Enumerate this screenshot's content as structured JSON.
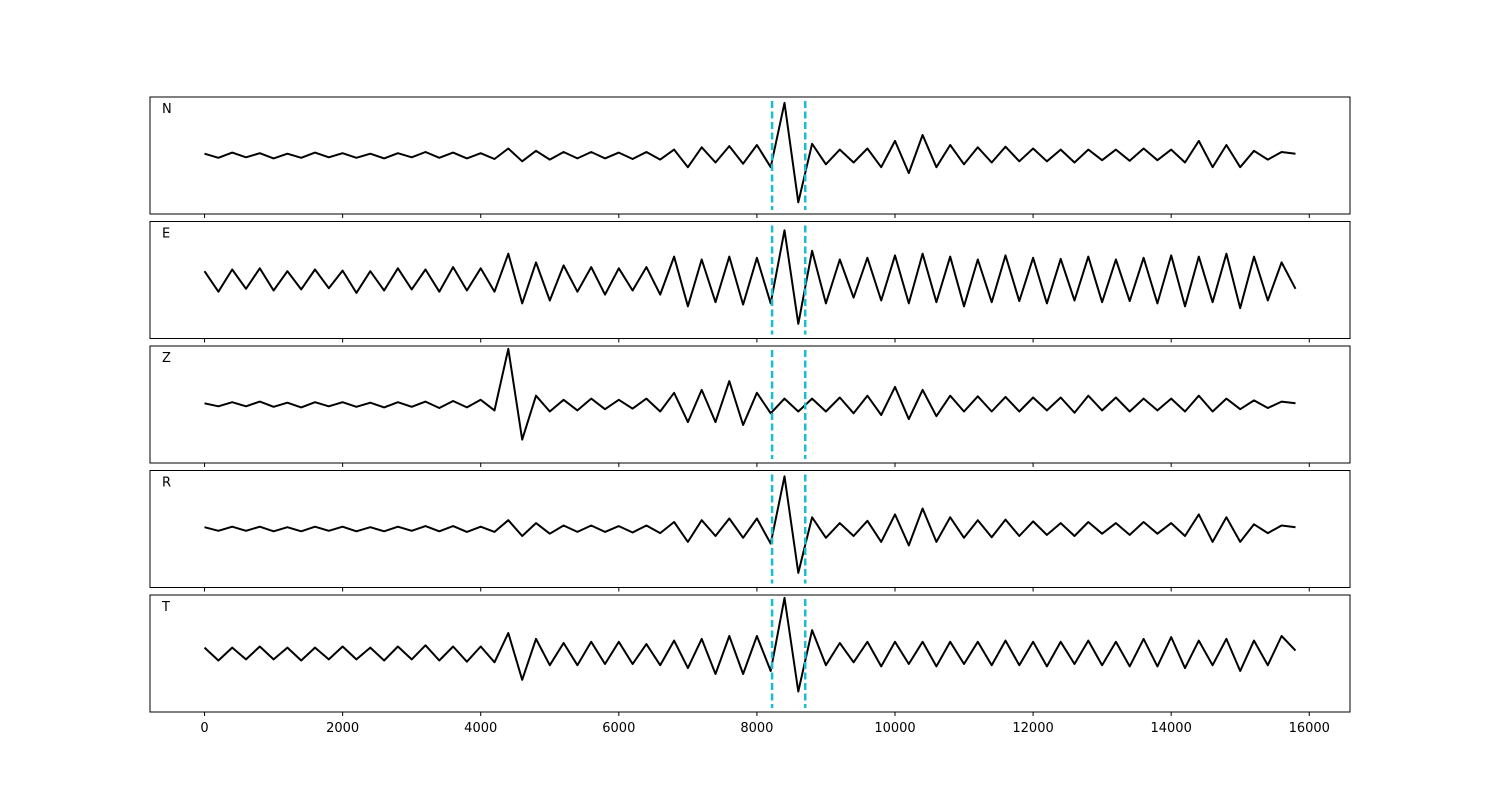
{
  "chart_data": [
    {
      "type": "line",
      "title": "N",
      "x": [
        0,
        200,
        400,
        600,
        800,
        1000,
        1200,
        1400,
        1600,
        1800,
        2000,
        2200,
        2400,
        2600,
        2800,
        3000,
        3200,
        3400,
        3600,
        3800,
        4000,
        4200,
        4400,
        4600,
        4800,
        5000,
        5200,
        5400,
        5600,
        5800,
        6000,
        6200,
        6400,
        6600,
        6800,
        7000,
        7200,
        7400,
        7600,
        7800,
        8000,
        8200,
        8400,
        8600,
        8800,
        9000,
        9200,
        9400,
        9600,
        9800,
        10000,
        10200,
        10400,
        10600,
        10800,
        11000,
        11200,
        11400,
        11600,
        11800,
        12000,
        12200,
        12400,
        12600,
        12800,
        13000,
        13200,
        13400,
        13600,
        13800,
        14000,
        14200,
        14400,
        14600,
        14800,
        15000,
        15200,
        15400,
        15600,
        15800
      ],
      "values": [
        0.03,
        -0.04,
        0.05,
        -0.03,
        0.04,
        -0.05,
        0.03,
        -0.04,
        0.05,
        -0.03,
        0.04,
        -0.04,
        0.03,
        -0.05,
        0.04,
        -0.03,
        0.06,
        -0.04,
        0.05,
        -0.05,
        0.04,
        -0.06,
        0.12,
        -0.1,
        0.08,
        -0.07,
        0.06,
        -0.05,
        0.06,
        -0.05,
        0.05,
        -0.06,
        0.06,
        -0.07,
        0.1,
        -0.2,
        0.14,
        -0.12,
        0.16,
        -0.14,
        0.18,
        -0.2,
        0.9,
        -0.8,
        0.2,
        -0.15,
        0.1,
        -0.12,
        0.12,
        -0.2,
        0.25,
        -0.3,
        0.35,
        -0.2,
        0.18,
        -0.15,
        0.14,
        -0.12,
        0.15,
        -0.1,
        0.12,
        -0.1,
        0.1,
        -0.12,
        0.1,
        -0.08,
        0.1,
        -0.09,
        0.12,
        -0.08,
        0.1,
        -0.12,
        0.25,
        -0.2,
        0.18,
        -0.2,
        0.08,
        -0.07,
        0.06,
        0.03
      ],
      "color": "#000000",
      "xlim": [
        -790,
        16590
      ],
      "ylim": [
        -1,
        1
      ],
      "xticks": [
        0,
        2000,
        4000,
        6000,
        8000,
        10000,
        12000,
        14000,
        16000
      ],
      "show_xtick_labels": false,
      "vlines": [
        8220,
        8700
      ],
      "vline_color": "#17becf"
    },
    {
      "type": "line",
      "title": "E",
      "x": [
        0,
        200,
        400,
        600,
        800,
        1000,
        1200,
        1400,
        1600,
        1800,
        2000,
        2200,
        2400,
        2600,
        2800,
        3000,
        3200,
        3400,
        3600,
        3800,
        4000,
        4200,
        4400,
        4600,
        4800,
        5000,
        5200,
        5400,
        5600,
        5800,
        6000,
        6200,
        6400,
        6600,
        6800,
        7000,
        7200,
        7400,
        7600,
        7800,
        8000,
        8200,
        8400,
        8600,
        8800,
        9000,
        9200,
        9400,
        9600,
        9800,
        10000,
        10200,
        10400,
        10600,
        10800,
        11000,
        11200,
        11400,
        11600,
        11800,
        12000,
        12200,
        12400,
        12600,
        12800,
        13000,
        13200,
        13400,
        13600,
        13800,
        14000,
        14200,
        14400,
        14600,
        14800,
        15000,
        15200,
        15400,
        15600,
        15800
      ],
      "values": [
        0.15,
        -0.2,
        0.18,
        -0.15,
        0.2,
        -0.18,
        0.15,
        -0.16,
        0.18,
        -0.14,
        0.16,
        -0.22,
        0.15,
        -0.18,
        0.2,
        -0.16,
        0.18,
        -0.2,
        0.22,
        -0.18,
        0.2,
        -0.2,
        0.45,
        -0.4,
        0.3,
        -0.35,
        0.25,
        -0.2,
        0.22,
        -0.25,
        0.2,
        -0.18,
        0.22,
        -0.25,
        0.4,
        -0.45,
        0.35,
        -0.38,
        0.4,
        -0.42,
        0.38,
        -0.4,
        0.85,
        -0.75,
        0.5,
        -0.4,
        0.35,
        -0.3,
        0.38,
        -0.35,
        0.42,
        -0.4,
        0.45,
        -0.38,
        0.4,
        -0.45,
        0.35,
        -0.38,
        0.42,
        -0.36,
        0.38,
        -0.4,
        0.36,
        -0.35,
        0.4,
        -0.38,
        0.35,
        -0.36,
        0.38,
        -0.4,
        0.42,
        -0.45,
        0.4,
        -0.38,
        0.45,
        -0.48,
        0.4,
        -0.35,
        0.3,
        -0.15
      ],
      "color": "#000000",
      "xlim": [
        -790,
        16590
      ],
      "ylim": [
        -1,
        1
      ],
      "xticks": [
        0,
        2000,
        4000,
        6000,
        8000,
        10000,
        12000,
        14000,
        16000
      ],
      "show_xtick_labels": false,
      "vlines": [
        8220,
        8700
      ],
      "vline_color": "#17becf"
    },
    {
      "type": "line",
      "title": "Z",
      "x": [
        0,
        200,
        400,
        600,
        800,
        1000,
        1200,
        1400,
        1600,
        1800,
        2000,
        2200,
        2400,
        2600,
        2800,
        3000,
        3200,
        3400,
        3600,
        3800,
        4000,
        4200,
        4400,
        4600,
        4800,
        5000,
        5200,
        5400,
        5600,
        5800,
        6000,
        6200,
        6400,
        6600,
        6800,
        7000,
        7200,
        7400,
        7600,
        7800,
        8000,
        8200,
        8400,
        8600,
        8800,
        9000,
        9200,
        9400,
        9600,
        9800,
        10000,
        10200,
        10400,
        10600,
        10800,
        11000,
        11200,
        11400,
        11600,
        11800,
        12000,
        12200,
        12400,
        12600,
        12800,
        13000,
        13200,
        13400,
        13600,
        13800,
        14000,
        14200,
        14400,
        14600,
        14800,
        15000,
        15200,
        15400,
        15600,
        15800
      ],
      "values": [
        0.02,
        -0.03,
        0.04,
        -0.03,
        0.05,
        -0.04,
        0.03,
        -0.05,
        0.04,
        -0.03,
        0.04,
        -0.04,
        0.03,
        -0.05,
        0.04,
        -0.04,
        0.05,
        -0.06,
        0.06,
        -0.05,
        0.08,
        -0.1,
        0.95,
        -0.6,
        0.15,
        -0.12,
        0.08,
        -0.1,
        0.1,
        -0.08,
        0.08,
        -0.07,
        0.1,
        -0.12,
        0.2,
        -0.3,
        0.25,
        -0.3,
        0.4,
        -0.35,
        0.2,
        -0.15,
        0.1,
        -0.12,
        0.1,
        -0.12,
        0.12,
        -0.15,
        0.15,
        -0.18,
        0.3,
        -0.25,
        0.25,
        -0.2,
        0.15,
        -0.12,
        0.14,
        -0.12,
        0.13,
        -0.12,
        0.12,
        -0.1,
        0.12,
        -0.14,
        0.15,
        -0.1,
        0.12,
        -0.12,
        0.1,
        -0.1,
        0.1,
        -0.12,
        0.15,
        -0.12,
        0.1,
        -0.08,
        0.07,
        -0.06,
        0.05,
        0.02
      ],
      "color": "#000000",
      "xlim": [
        -790,
        16590
      ],
      "ylim": [
        -1,
        1
      ],
      "xticks": [
        0,
        2000,
        4000,
        6000,
        8000,
        10000,
        12000,
        14000,
        16000
      ],
      "show_xtick_labels": false,
      "vlines": [
        8220,
        8700
      ],
      "vline_color": "#17becf"
    },
    {
      "type": "line",
      "title": "R",
      "x": [
        0,
        200,
        400,
        600,
        800,
        1000,
        1200,
        1400,
        1600,
        1800,
        2000,
        2200,
        2400,
        2600,
        2800,
        3000,
        3200,
        3400,
        3600,
        3800,
        4000,
        4200,
        4400,
        4600,
        4800,
        5000,
        5200,
        5400,
        5600,
        5800,
        6000,
        6200,
        6400,
        6600,
        6800,
        7000,
        7200,
        7400,
        7600,
        7800,
        8000,
        8200,
        8400,
        8600,
        8800,
        9000,
        9200,
        9400,
        9600,
        9800,
        10000,
        10200,
        10400,
        10600,
        10800,
        11000,
        11200,
        11400,
        11600,
        11800,
        12000,
        12200,
        12400,
        12600,
        12800,
        13000,
        13200,
        13400,
        13600,
        13800,
        14000,
        14200,
        14400,
        14600,
        14800,
        15000,
        15200,
        15400,
        15600,
        15800
      ],
      "values": [
        0.03,
        -0.03,
        0.04,
        -0.03,
        0.04,
        -0.04,
        0.03,
        -0.04,
        0.04,
        -0.03,
        0.04,
        -0.04,
        0.03,
        -0.04,
        0.04,
        -0.03,
        0.05,
        -0.04,
        0.05,
        -0.05,
        0.04,
        -0.05,
        0.15,
        -0.12,
        0.1,
        -0.08,
        0.06,
        -0.05,
        0.06,
        -0.05,
        0.05,
        -0.06,
        0.06,
        -0.07,
        0.12,
        -0.22,
        0.15,
        -0.12,
        0.18,
        -0.15,
        0.18,
        -0.25,
        0.9,
        -0.75,
        0.2,
        -0.15,
        0.1,
        -0.12,
        0.14,
        -0.22,
        0.25,
        -0.28,
        0.35,
        -0.22,
        0.2,
        -0.15,
        0.15,
        -0.14,
        0.16,
        -0.12,
        0.13,
        -0.1,
        0.1,
        -0.12,
        0.12,
        -0.08,
        0.1,
        -0.1,
        0.12,
        -0.08,
        0.1,
        -0.12,
        0.25,
        -0.22,
        0.2,
        -0.22,
        0.08,
        -0.07,
        0.06,
        0.03
      ],
      "color": "#000000",
      "xlim": [
        -790,
        16590
      ],
      "ylim": [
        -1,
        1
      ],
      "xticks": [
        0,
        2000,
        4000,
        6000,
        8000,
        10000,
        12000,
        14000,
        16000
      ],
      "show_xtick_labels": false,
      "vlines": [
        8220,
        8700
      ],
      "vline_color": "#17becf"
    },
    {
      "type": "line",
      "title": "T",
      "x": [
        0,
        200,
        400,
        600,
        800,
        1000,
        1200,
        1400,
        1600,
        1800,
        2000,
        2200,
        2400,
        2600,
        2800,
        3000,
        3200,
        3400,
        3600,
        3800,
        4000,
        4200,
        4400,
        4600,
        4800,
        5000,
        5200,
        5400,
        5600,
        5800,
        6000,
        6200,
        6400,
        6600,
        6800,
        7000,
        7200,
        7400,
        7600,
        7800,
        8000,
        8200,
        8400,
        8600,
        8800,
        9000,
        9200,
        9400,
        9600,
        9800,
        10000,
        10200,
        10400,
        10600,
        10800,
        11000,
        11200,
        11400,
        11600,
        11800,
        12000,
        12200,
        12400,
        12600,
        12800,
        13000,
        13200,
        13400,
        13600,
        13800,
        14000,
        14200,
        14400,
        14600,
        14800,
        15000,
        15200,
        15400,
        15600,
        15800
      ],
      "values": [
        0.1,
        -0.12,
        0.1,
        -0.1,
        0.12,
        -0.1,
        0.1,
        -0.12,
        0.1,
        -0.1,
        0.12,
        -0.1,
        0.1,
        -0.12,
        0.12,
        -0.1,
        0.14,
        -0.12,
        0.12,
        -0.14,
        0.12,
        -0.15,
        0.35,
        -0.45,
        0.25,
        -0.2,
        0.18,
        -0.2,
        0.2,
        -0.18,
        0.2,
        -0.18,
        0.16,
        -0.2,
        0.22,
        -0.25,
        0.25,
        -0.35,
        0.3,
        -0.35,
        0.3,
        -0.3,
        0.95,
        -0.65,
        0.4,
        -0.2,
        0.18,
        -0.15,
        0.2,
        -0.22,
        0.2,
        -0.18,
        0.2,
        -0.22,
        0.2,
        -0.18,
        0.2,
        -0.2,
        0.22,
        -0.2,
        0.2,
        -0.22,
        0.2,
        -0.18,
        0.22,
        -0.2,
        0.2,
        -0.22,
        0.25,
        -0.22,
        0.28,
        -0.25,
        0.22,
        -0.2,
        0.25,
        -0.3,
        0.22,
        -0.2,
        0.3,
        0.05
      ],
      "color": "#000000",
      "xlim": [
        -790,
        16590
      ],
      "ylim": [
        -1,
        1
      ],
      "xticks": [
        0,
        2000,
        4000,
        6000,
        8000,
        10000,
        12000,
        14000,
        16000
      ],
      "show_xtick_labels": true,
      "vlines": [
        8220,
        8700
      ],
      "vline_color": "#17becf"
    }
  ]
}
